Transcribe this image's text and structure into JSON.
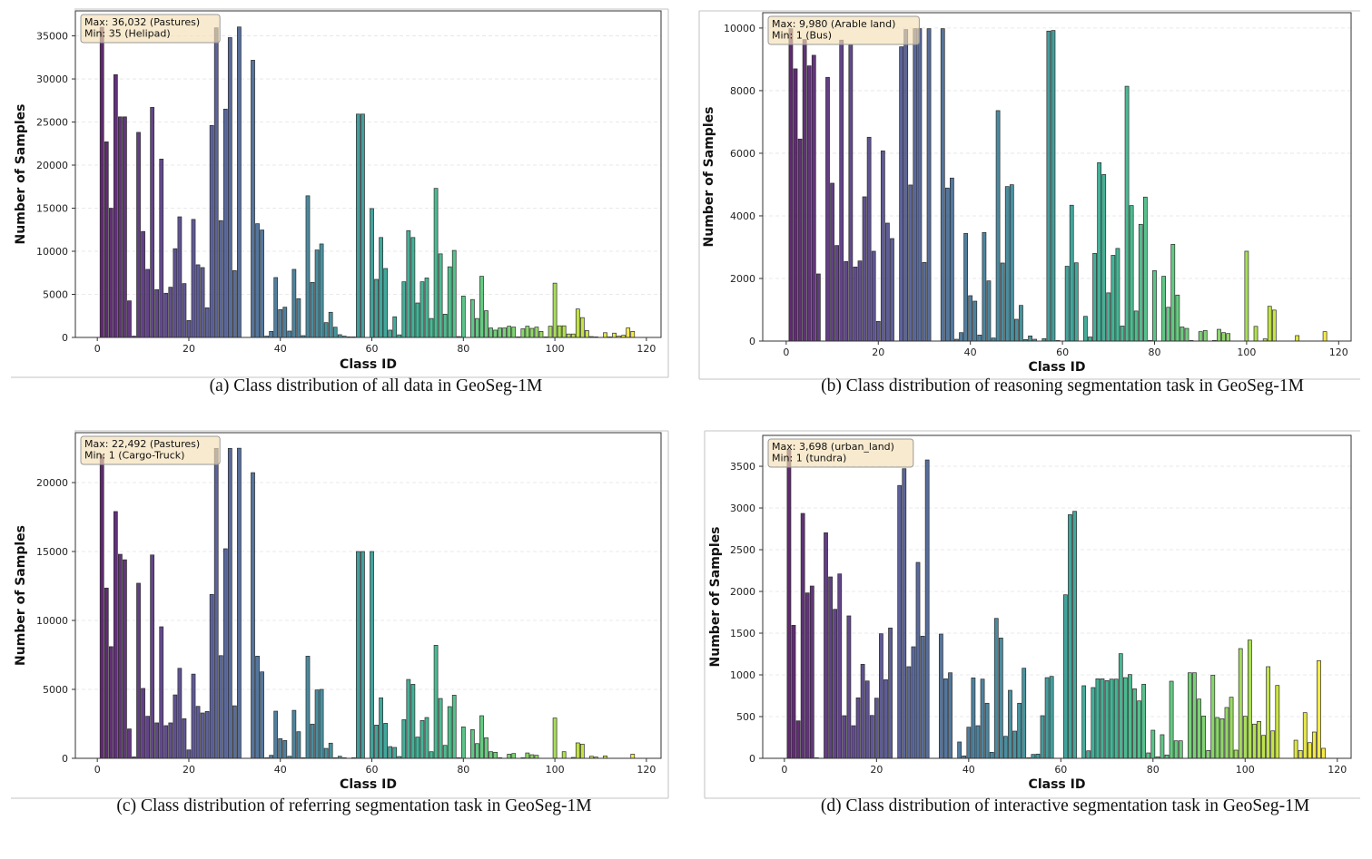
{
  "chart_data": [
    {
      "type": "bar",
      "caption": "(a) Class distribution of all data in GeoSeg-1M",
      "xlabel": "Class ID",
      "ylabel": "Number of Samples",
      "annotation": [
        "Max: 36,032 (Pastures)",
        "Min: 35 (Helipad)"
      ],
      "xlim": [
        -4.8,
        123.2
      ],
      "ylim": [
        0,
        37900
      ],
      "xticks": [
        0,
        20,
        40,
        60,
        80,
        100,
        120
      ],
      "yticks": [
        0,
        5000,
        10000,
        15000,
        20000,
        25000,
        30000,
        35000
      ],
      "grid": "horizontal dashed",
      "colormap": "viridis",
      "values": [
        36000,
        22700,
        15000,
        30500,
        25600,
        25600,
        4250,
        150,
        23800,
        12300,
        7900,
        26700,
        5550,
        20700,
        5130,
        5830,
        10300,
        14000,
        6250,
        1970,
        13700,
        8430,
        8110,
        3440,
        24600,
        35930,
        13560,
        26500,
        34800,
        7760,
        36032,
        0,
        0,
        32170,
        13200,
        12470,
        150,
        700,
        6950,
        3230,
        3510,
        740,
        7900,
        4500,
        210,
        16440,
        6390,
        10150,
        10850,
        1720,
        2920,
        1190,
        320,
        150,
        70,
        35,
        25920,
        25920,
        0,
        14960,
        6740,
        11600,
        8000,
        850,
        2400,
        300,
        6460,
        12400,
        11600,
        4000,
        6460,
        6900,
        2200,
        17300,
        9700,
        2700,
        8200,
        10100,
        100,
        4800,
        0,
        4400,
        2200,
        7100,
        3100,
        1100,
        850,
        1100,
        1100,
        1300,
        1200,
        50,
        1000,
        1300,
        1050,
        1200,
        700,
        50,
        1300,
        6300,
        1350,
        1350,
        400,
        400,
        3300,
        2300,
        800,
        100,
        50,
        0,
        550,
        50,
        500,
        150,
        250,
        1100,
        700
      ]
    },
    {
      "type": "bar",
      "caption": "(b) Class distribution of reasoning segmentation task in GeoSeg-1M",
      "xlabel": "Class ID",
      "ylabel": "Number of Samples",
      "annotation": [
        "Max: 9,980 (Arable land)",
        "Min: 1 (Bus)"
      ],
      "xlim": [
        -5.1,
        122.7
      ],
      "ylim": [
        0,
        10490
      ],
      "xticks": [
        0,
        20,
        40,
        60,
        80,
        100,
        120
      ],
      "yticks": [
        0,
        2000,
        4000,
        6000,
        8000,
        10000
      ],
      "grid": "horizontal dashed",
      "colormap": "viridis",
      "values": [
        9980,
        8696,
        6454,
        9633,
        8792,
        9130,
        2145,
        0,
        8425,
        5043,
        3053,
        9614,
        2541,
        9469,
        2367,
        2560,
        4609,
        6512,
        2870,
        628,
        6077,
        3768,
        3275,
        0,
        9401,
        9952,
        4986,
        9980,
        9980,
        2512,
        9980,
        0,
        0,
        9980,
        4889,
        5208,
        58,
        270,
        3440,
        1450,
        1275,
        193,
        3469,
        1923,
        97,
        7362,
        2493,
        4937,
        4995,
        696,
        1140,
        48,
        164,
        58,
        0,
        77,
        9903,
        9922,
        1,
        0,
        2390,
        4340,
        2500,
        0,
        790,
        131,
        2800,
        5700,
        5320,
        1540,
        2740,
        2960,
        480,
        8140,
        4330,
        960,
        3730,
        4600,
        10,
        2250,
        0,
        2070,
        1080,
        3090,
        1470,
        450,
        405,
        5,
        0,
        300,
        340,
        0,
        5,
        375,
        270,
        240,
        0,
        0,
        0,
        2870,
        0,
        470,
        0,
        70,
        1110,
        990,
        0,
        0,
        0,
        0,
        175,
        0,
        0,
        0,
        0,
        0,
        300
      ]
    },
    {
      "type": "bar",
      "caption": "(c) Class distribution of referring segmentation task in GeoSeg-1M",
      "xlabel": "Class ID",
      "ylabel": "Number of Samples",
      "annotation": [
        "Max: 22,492 (Pastures)",
        "Min: 1 (Cargo-Truck)"
      ],
      "xlim": [
        -4.8,
        123.2
      ],
      "ylim": [
        0,
        23620
      ],
      "xticks": [
        0,
        20,
        40,
        60,
        80,
        100,
        120
      ],
      "yticks": [
        0,
        5000,
        10000,
        15000,
        20000
      ],
      "grid": "horizontal dashed",
      "colormap": "viridis",
      "values": [
        22000,
        12350,
        8100,
        17900,
        14800,
        14400,
        2130,
        100,
        12700,
        5070,
        3050,
        14750,
        2570,
        9540,
        2370,
        2570,
        4600,
        6530,
        2870,
        610,
        6110,
        3770,
        3290,
        3400,
        11890,
        22480,
        7450,
        15200,
        22480,
        3810,
        22492,
        0,
        0,
        20720,
        7410,
        6270,
        30,
        220,
        3420,
        1430,
        1290,
        150,
        3480,
        1930,
        40,
        7410,
        2480,
        4960,
        5000,
        720,
        1100,
        10,
        150,
        30,
        0,
        20,
        15000,
        15000,
        0,
        15000,
        2410,
        4390,
        2540,
        850,
        790,
        130,
        2800,
        5720,
        5370,
        1540,
        2740,
        2960,
        480,
        8200,
        4340,
        940,
        3750,
        4580,
        10,
        2280,
        0,
        2080,
        1070,
        3090,
        1490,
        480,
        440,
        5,
        0,
        300,
        350,
        0,
        1,
        390,
        260,
        220,
        0,
        0,
        0,
        2920,
        0,
        480,
        0,
        65,
        1120,
        1030,
        0,
        150,
        90,
        0,
        175,
        0,
        0,
        0,
        0,
        0,
        300
      ]
    },
    {
      "type": "bar",
      "caption": "(d) Class distribution of interactive segmentation task in GeoSeg-1M",
      "xlabel": "Class ID",
      "ylabel": "Number of Samples",
      "annotation": [
        "Max: 3,698 (urban_land)",
        "Min: 1 (tundra)"
      ],
      "xlim": [
        -4.7,
        123.0
      ],
      "ylim": [
        0,
        3870
      ],
      "xticks": [
        0,
        20,
        40,
        60,
        80,
        100,
        120
      ],
      "yticks": [
        0,
        500,
        1000,
        1500,
        2000,
        2500,
        3000,
        3500
      ],
      "grid": "horizontal dashed",
      "colormap": "viridis",
      "values": [
        3698,
        1594,
        449,
        2935,
        1982,
        2065,
        1,
        0,
        2703,
        2174,
        1786,
        2210,
        511,
        1707,
        391,
        725,
        1127,
        927,
        514,
        721,
        1493,
        942,
        1562,
        0,
        3270,
        3471,
        1098,
        1337,
        2348,
        1464,
        3576,
        0,
        0,
        1489,
        953,
        1025,
        0,
        196,
        29,
        373,
        964,
        391,
        949,
        660,
        72,
        1677,
        1442,
        264,
        815,
        326,
        660,
        1080,
        1,
        47,
        51,
        511,
        967,
        982,
        0,
        0,
        1960,
        2920,
        2960,
        0,
        870,
        90,
        848,
        953,
        953,
        931,
        949,
        949,
        1254,
        967,
        1004,
        833,
        688,
        888,
        65,
        337,
        18,
        283,
        40,
        924,
        210,
        210,
        0,
        1025,
        1025,
        710,
        507,
        94,
        997,
        489,
        474,
        609,
        732,
        98,
        1315,
        504,
        1417,
        410,
        442,
        275,
        1098,
        329,
        873,
        0,
        0,
        0,
        217,
        94,
        547,
        188,
        315,
        1170,
        120
      ]
    }
  ],
  "class_ids_first_last": [
    1,
    117
  ]
}
